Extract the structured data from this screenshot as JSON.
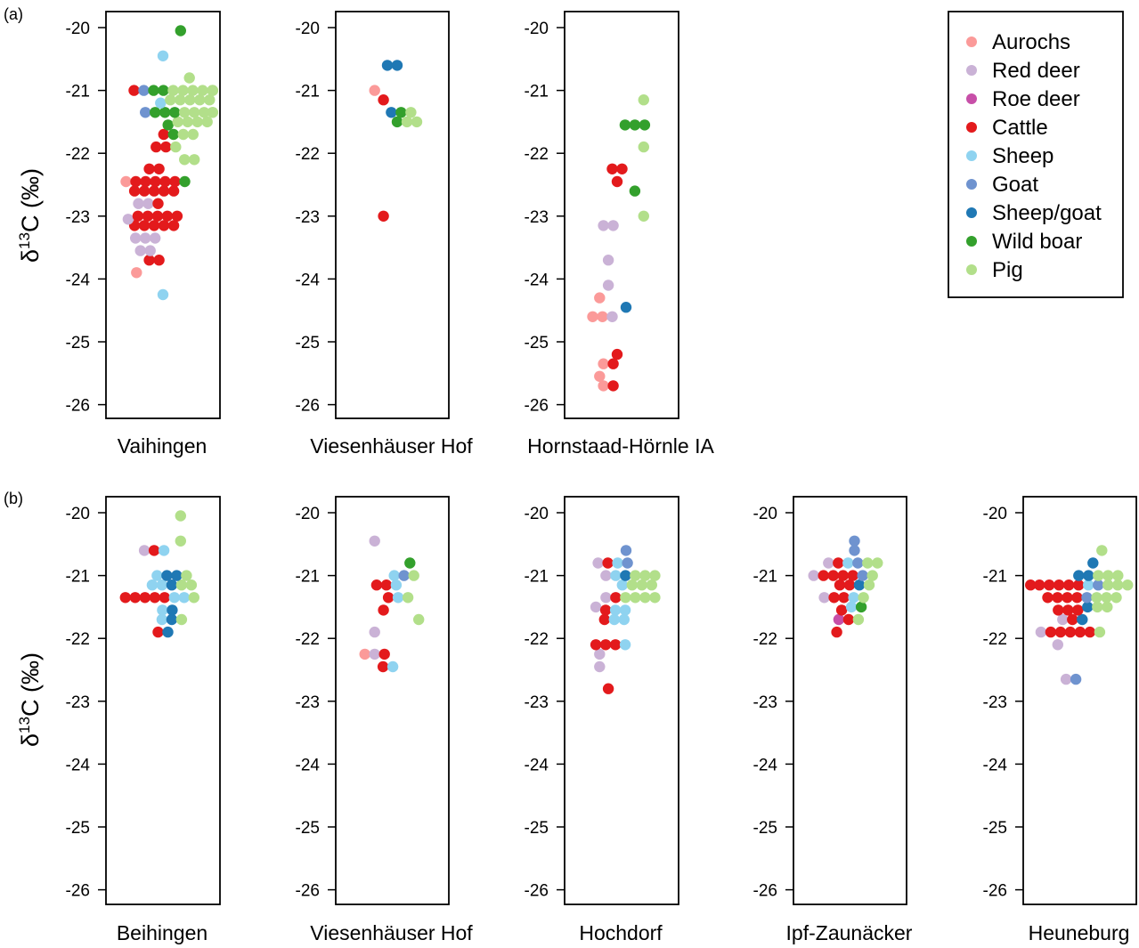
{
  "chart_data": [
    {
      "type": "scatter",
      "row_label": "(a)",
      "ylabel": "δ13C (‰)",
      "ylim": [
        -26.2,
        -19.8
      ],
      "yticks": [
        -20,
        -21,
        -22,
        -23,
        -24,
        -25,
        -26
      ],
      "legend": {
        "placement": "top-right",
        "entries": [
          {
            "name": "Aurochs",
            "color": "#fb9a99"
          },
          {
            "name": "Red deer",
            "color": "#cab2d6"
          },
          {
            "name": "Roe deer",
            "color": "#c74fa8"
          },
          {
            "name": "Cattle",
            "color": "#e31a1c"
          },
          {
            "name": "Sheep",
            "color": "#8fd3f0"
          },
          {
            "name": "Goat",
            "color": "#6f93cf"
          },
          {
            "name": "Sheep/goat",
            "color": "#1f78b4"
          },
          {
            "name": "Wild boar",
            "color": "#33a02c"
          },
          {
            "name": "Pig",
            "color": "#b2df8a"
          }
        ]
      },
      "panels": [
        {
          "site": "Vaihingen",
          "series": [
            {
              "name": "Aurochs",
              "values": [
                -22.45,
                -23.9
              ]
            },
            {
              "name": "Red deer",
              "values": [
                -22.8,
                -22.8,
                -23.05,
                -23.35,
                -23.35,
                -23.35,
                -23.55,
                -23.55
              ]
            },
            {
              "name": "Cattle",
              "values": [
                -21.0,
                -21.7,
                -21.9,
                -21.9,
                -22.25,
                -22.25,
                -22.45,
                -22.45,
                -22.45,
                -22.45,
                -22.45,
                -22.6,
                -22.6,
                -22.6,
                -22.6,
                -22.6,
                -22.8,
                -23.0,
                -23.0,
                -23.0,
                -23.0,
                -23.0,
                -23.15,
                -23.15,
                -23.15,
                -23.15,
                -23.15,
                -23.7,
                -23.7
              ]
            },
            {
              "name": "Sheep",
              "values": [
                -20.45,
                -21.2,
                -24.25
              ]
            },
            {
              "name": "Goat",
              "values": [
                -21.0,
                -21.35
              ]
            },
            {
              "name": "Wild boar",
              "values": [
                -20.05,
                -21.0,
                -21.0,
                -21.35,
                -21.35,
                -21.35,
                -21.55,
                -21.7,
                -22.45
              ]
            },
            {
              "name": "Pig",
              "values": [
                -20.8,
                -21.0,
                -21.0,
                -21.0,
                -21.0,
                -21.0,
                -21.0,
                -21.0,
                -21.15,
                -21.15,
                -21.15,
                -21.15,
                -21.15,
                -21.35,
                -21.35,
                -21.35,
                -21.35,
                -21.35,
                -21.5,
                -21.5,
                -21.5,
                -21.5,
                -21.7,
                -21.7,
                -21.9,
                -22.1,
                -22.1
              ]
            }
          ]
        },
        {
          "site": "Viesenhäuser Hof",
          "series": [
            {
              "name": "Aurochs",
              "values": [
                -21.0
              ]
            },
            {
              "name": "Cattle",
              "values": [
                -21.15,
                -23.0
              ]
            },
            {
              "name": "Sheep/goat",
              "values": [
                -20.6,
                -20.6,
                -21.35
              ]
            },
            {
              "name": "Wild boar",
              "values": [
                -21.35,
                -21.5
              ]
            },
            {
              "name": "Pig",
              "values": [
                -21.35,
                -21.5,
                -21.5
              ]
            }
          ]
        },
        {
          "site": "Hornstaad-Hörnle IA",
          "series": [
            {
              "name": "Aurochs",
              "values": [
                -24.3,
                -24.6,
                -24.6,
                -25.35,
                -25.55,
                -25.7
              ]
            },
            {
              "name": "Red deer",
              "values": [
                -23.15,
                -23.15,
                -23.7,
                -24.1,
                -24.6
              ]
            },
            {
              "name": "Cattle",
              "values": [
                -22.25,
                -22.25,
                -22.45,
                -25.2,
                -25.35,
                -25.7
              ]
            },
            {
              "name": "Sheep/goat",
              "values": [
                -24.45
              ]
            },
            {
              "name": "Wild boar",
              "values": [
                -21.55,
                -21.55,
                -21.55,
                -22.6
              ]
            },
            {
              "name": "Pig",
              "values": [
                -21.15,
                -21.9,
                -23.0
              ]
            }
          ]
        }
      ]
    },
    {
      "type": "scatter",
      "row_label": "(b)",
      "ylabel": "δ13C (‰)",
      "ylim": [
        -26.2,
        -19.8
      ],
      "yticks": [
        -20,
        -21,
        -22,
        -23,
        -24,
        -25,
        -26
      ],
      "panels": [
        {
          "site": "Beihingen",
          "series": [
            {
              "name": "Red deer",
              "values": [
                -20.6
              ]
            },
            {
              "name": "Cattle",
              "values": [
                -20.6,
                -21.35,
                -21.35,
                -21.35,
                -21.35,
                -21.35,
                -21.9
              ]
            },
            {
              "name": "Sheep",
              "values": [
                -20.6,
                -21.0,
                -21.15,
                -21.15,
                -21.35,
                -21.35,
                -21.55,
                -21.7
              ]
            },
            {
              "name": "Sheep/goat",
              "values": [
                -21.0,
                -21.0,
                -21.15,
                -21.55,
                -21.7,
                -21.9
              ]
            },
            {
              "name": "Pig",
              "values": [
                -20.05,
                -20.45,
                -21.0,
                -21.15,
                -21.15,
                -21.35,
                -21.7
              ]
            }
          ]
        },
        {
          "site": "Viesenhäuser Hof",
          "series": [
            {
              "name": "Aurochs",
              "values": [
                -22.25
              ]
            },
            {
              "name": "Red deer",
              "values": [
                -20.45,
                -21.9,
                -22.25
              ]
            },
            {
              "name": "Cattle",
              "values": [
                -21.15,
                -21.15,
                -21.35,
                -21.55,
                -22.25,
                -22.45
              ]
            },
            {
              "name": "Sheep",
              "values": [
                -21.0,
                -21.15,
                -21.35,
                -22.45
              ]
            },
            {
              "name": "Goat",
              "values": [
                -21.0
              ]
            },
            {
              "name": "Wild boar",
              "values": [
                -20.8
              ]
            },
            {
              "name": "Pig",
              "values": [
                -21.0,
                -21.35,
                -21.7
              ]
            }
          ]
        },
        {
          "site": "Hochdorf",
          "series": [
            {
              "name": "Red deer",
              "values": [
                -20.8,
                -21.0,
                -21.35,
                -21.5,
                -22.25,
                -22.45
              ]
            },
            {
              "name": "Cattle",
              "values": [
                -20.8,
                -21.35,
                -21.55,
                -21.7,
                -22.1,
                -22.1,
                -22.1,
                -22.8
              ]
            },
            {
              "name": "Sheep",
              "values": [
                -20.8,
                -21.0,
                -21.15,
                -21.55,
                -21.55,
                -21.7,
                -21.7,
                -22.1
              ]
            },
            {
              "name": "Goat",
              "values": [
                -20.6,
                -20.8
              ]
            },
            {
              "name": "Sheep/goat",
              "values": [
                -21.0
              ]
            },
            {
              "name": "Pig",
              "values": [
                -21.0,
                -21.0,
                -21.0,
                -21.15,
                -21.15,
                -21.15,
                -21.35,
                -21.35,
                -21.35,
                -21.35
              ]
            }
          ]
        },
        {
          "site": "Ipf-Zaunäcker",
          "series": [
            {
              "name": "Red deer",
              "values": [
                -20.8,
                -21.0,
                -21.35
              ]
            },
            {
              "name": "Roe deer",
              "values": [
                -21.7
              ]
            },
            {
              "name": "Cattle",
              "values": [
                -20.8,
                -21.0,
                -21.0,
                -21.0,
                -21.0,
                -21.15,
                -21.15,
                -21.35,
                -21.35,
                -21.55,
                -21.7,
                -21.9
              ]
            },
            {
              "name": "Sheep",
              "values": [
                -20.8,
                -21.35,
                -21.5
              ]
            },
            {
              "name": "Goat",
              "values": [
                -20.45,
                -20.6,
                -20.8,
                -21.0
              ]
            },
            {
              "name": "Sheep/goat",
              "values": [
                -21.15
              ]
            },
            {
              "name": "Wild boar",
              "values": [
                -21.5
              ]
            },
            {
              "name": "Pig",
              "values": [
                -20.8,
                -20.8,
                -21.0,
                -21.15,
                -21.35,
                -21.7
              ]
            }
          ]
        },
        {
          "site": "Heuneburg",
          "series": [
            {
              "name": "Red deer",
              "values": [
                -21.7,
                -21.9,
                -22.1,
                -22.65
              ]
            },
            {
              "name": "Cattle",
              "values": [
                -21.15,
                -21.15,
                -21.15,
                -21.15,
                -21.15,
                -21.15,
                -21.35,
                -21.35,
                -21.35,
                -21.35,
                -21.55,
                -21.55,
                -21.55,
                -21.7,
                -21.9,
                -21.9,
                -21.9,
                -21.9,
                -21.9
              ]
            },
            {
              "name": "Sheep",
              "values": [
                -21.15
              ]
            },
            {
              "name": "Goat",
              "values": [
                -21.15,
                -21.35,
                -22.65
              ]
            },
            {
              "name": "Sheep/goat",
              "values": [
                -20.8,
                -21.0,
                -21.0,
                -21.5,
                -21.7
              ]
            },
            {
              "name": "Pig",
              "values": [
                -20.6,
                -21.0,
                -21.0,
                -21.0,
                -21.15,
                -21.15,
                -21.15,
                -21.35,
                -21.35,
                -21.35,
                -21.5,
                -21.5,
                -21.9
              ]
            }
          ]
        }
      ]
    }
  ]
}
